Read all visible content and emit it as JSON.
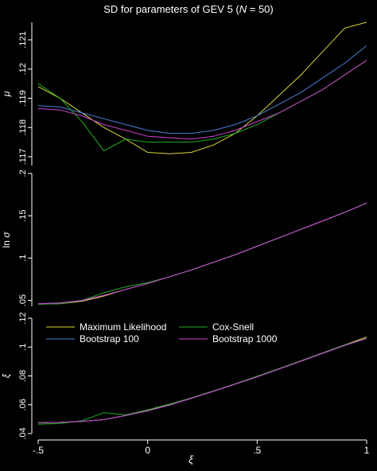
{
  "chart_data": {
    "title": "SD for parameters of GEV 5 (N = 50)",
    "title_parts": {
      "prefix": "SD for parameters of GEV 5 (",
      "n_symbol": "N",
      "suffix": " = 50)"
    },
    "type": "line",
    "xlabel": "ξ",
    "xlim": [
      -0.5,
      1.0
    ],
    "x_tick_labels": [
      {
        "value": -0.5,
        "label": "-.5"
      },
      {
        "value": 0,
        "label": "0"
      },
      {
        "value": 0.5,
        "label": ".5"
      },
      {
        "value": 1,
        "label": "1"
      }
    ],
    "x": [
      -0.5,
      -0.4,
      -0.3,
      -0.2,
      -0.1,
      0.0,
      0.1,
      0.2,
      0.3,
      0.4,
      0.5,
      0.6,
      0.7,
      0.8,
      0.9,
      1.0
    ],
    "legend": {
      "placement": "inside-bottom-panel-top"
    },
    "colors": {
      "Maximum Likelihood": "#d8d83a",
      "Cox-Snell": "#1fae1f",
      "Bootstrap 100": "#4a7fd6",
      "Bootstrap 1000": "#cc44cc"
    },
    "panels": [
      {
        "ylabel": "μ",
        "ylim": [
          0.1167,
          0.1216
        ],
        "y_ticks": [
          {
            "value": 0.117,
            "label": ".117"
          },
          {
            "value": 0.118,
            "label": ".118"
          },
          {
            "value": 0.119,
            "label": ".119"
          },
          {
            "value": 0.12,
            "label": ".12"
          },
          {
            "value": 0.121,
            "label": ".121"
          }
        ],
        "series": [
          {
            "name": "Maximum Likelihood",
            "values": [
              0.1194,
              0.119,
              0.1185,
              0.118,
              0.1176,
              0.11715,
              0.1171,
              0.11715,
              0.1174,
              0.1178,
              0.1184,
              0.1191,
              0.1198,
              0.1206,
              0.1214,
              0.1222
            ]
          },
          {
            "name": "Cox-Snell",
            "values": [
              0.1195,
              0.119,
              0.1182,
              0.1172,
              0.1176,
              0.1175,
              0.1175,
              0.1175,
              0.1176,
              0.1178,
              0.1181,
              0.1185,
              0.1189,
              0.1193,
              0.1198,
              0.1203
            ]
          },
          {
            "name": "Bootstrap 100",
            "values": [
              0.11875,
              0.1187,
              0.1185,
              0.1183,
              0.1181,
              0.1179,
              0.1178,
              0.1178,
              0.1179,
              0.1181,
              0.1184,
              0.1188,
              0.1192,
              0.1197,
              0.1202,
              0.1208
            ]
          },
          {
            "name": "Bootstrap 1000",
            "values": [
              0.11865,
              0.1186,
              0.1184,
              0.1181,
              0.1179,
              0.1177,
              0.11765,
              0.1176,
              0.1177,
              0.1179,
              0.1182,
              0.1185,
              0.1189,
              0.1193,
              0.1198,
              0.1203
            ]
          }
        ]
      },
      {
        "ylabel": "ln σ",
        "ylim": [
          0.043,
          0.2
        ],
        "y_ticks": [
          {
            "value": 0.05,
            "label": ".05"
          },
          {
            "value": 0.1,
            "label": ".1"
          },
          {
            "value": 0.15,
            "label": ".15"
          },
          {
            "value": 0.2,
            "label": ".2"
          }
        ],
        "series": [
          {
            "name": "Maximum Likelihood",
            "values": [
              0.0455,
              0.046,
              0.049,
              0.055,
              0.063,
              0.07,
              0.078,
              0.086,
              0.095,
              0.104,
              0.114,
              0.124,
              0.134,
              0.144,
              0.154,
              0.165
            ]
          },
          {
            "name": "Cox-Snell",
            "values": [
              0.0455,
              0.046,
              0.05,
              0.059,
              0.066,
              0.071,
              0.078,
              0.086,
              0.095,
              0.104,
              0.114,
              0.124,
              0.134,
              0.144,
              0.154,
              0.165
            ]
          },
          {
            "name": "Bootstrap 100",
            "values": [
              0.046,
              0.047,
              0.05,
              0.056,
              0.063,
              0.07,
              0.078,
              0.086,
              0.095,
              0.104,
              0.114,
              0.124,
              0.134,
              0.144,
              0.154,
              0.165
            ]
          },
          {
            "name": "Bootstrap 1000",
            "values": [
              0.046,
              0.047,
              0.05,
              0.056,
              0.063,
              0.07,
              0.078,
              0.086,
              0.095,
              0.104,
              0.114,
              0.124,
              0.134,
              0.144,
              0.154,
              0.165
            ]
          }
        ]
      },
      {
        "ylabel": "ξ",
        "ylim": [
          0.04,
          0.12
        ],
        "y_ticks": [
          {
            "value": 0.04,
            "label": ".04"
          },
          {
            "value": 0.06,
            "label": ".06"
          },
          {
            "value": 0.08,
            "label": ".08"
          },
          {
            "value": 0.1,
            "label": ".1"
          },
          {
            "value": 0.12,
            "label": ".12"
          }
        ],
        "series": [
          {
            "name": "Maximum Likelihood",
            "values": [
              0.0475,
              0.0478,
              0.0484,
              0.0497,
              0.0525,
              0.056,
              0.0601,
              0.0648,
              0.0695,
              0.0745,
              0.0797,
              0.0851,
              0.0905,
              0.096,
              0.1015,
              0.107
            ]
          },
          {
            "name": "Cox-Snell",
            "values": [
              0.0465,
              0.047,
              0.049,
              0.0545,
              0.053,
              0.0565,
              0.0605,
              0.0648,
              0.0695,
              0.0745,
              0.0797,
              0.0851,
              0.0905,
              0.096,
              0.1015,
              0.106
            ]
          },
          {
            "name": "Bootstrap 100",
            "values": [
              0.0475,
              0.0478,
              0.0485,
              0.0497,
              0.0525,
              0.0558,
              0.0598,
              0.0645,
              0.0693,
              0.0743,
              0.0794,
              0.0848,
              0.0902,
              0.0957,
              0.1012,
              0.106
            ]
          },
          {
            "name": "Bootstrap 1000",
            "values": [
              0.0475,
              0.0478,
              0.0485,
              0.0497,
              0.0525,
              0.0558,
              0.0598,
              0.0645,
              0.0693,
              0.0743,
              0.0794,
              0.0848,
              0.0902,
              0.0957,
              0.1012,
              0.106
            ]
          }
        ]
      }
    ]
  }
}
